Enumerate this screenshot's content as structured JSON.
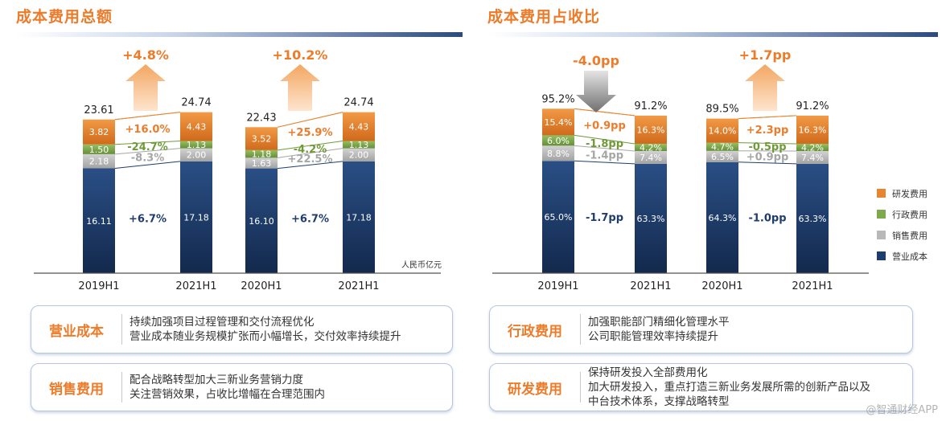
{
  "left_panel": {
    "title": "成本费用总额"
  },
  "right_panel": {
    "title": "成本费用占收比"
  },
  "colors": {
    "rd": "#e8862f",
    "admin": "#7faa4c",
    "sales": "#b8b8b8",
    "cost": "#1f3d6c",
    "orange_text": "#ec7b2a",
    "green_text": "#6f9a3a",
    "gray_text": "#a6a6a6",
    "navy_text": "#1f3d6c"
  },
  "chart_data": [
    {
      "type": "bar",
      "stacked": true,
      "title": "成本费用总额",
      "unit": "人民币亿元",
      "categories": [
        "2019H1",
        "2021H1",
        "2020H1",
        "2021H1"
      ],
      "series": [
        {
          "key": "cost",
          "name": "营业成本",
          "values": [
            16.11,
            17.18,
            16.1,
            17.18
          ],
          "labels": [
            "16.11",
            "17.18",
            "16.10",
            "17.18"
          ]
        },
        {
          "key": "sales",
          "name": "销售费用",
          "values": [
            2.18,
            2.0,
            1.63,
            2.0
          ],
          "labels": [
            "2.18",
            "2.00",
            "1.63",
            "2.00"
          ]
        },
        {
          "key": "admin",
          "name": "行政费用",
          "values": [
            1.5,
            1.13,
            1.18,
            1.13
          ],
          "labels": [
            "1.50",
            "1.13",
            "1.18",
            "1.13"
          ]
        },
        {
          "key": "rd",
          "name": "研发费用",
          "values": [
            3.82,
            4.43,
            3.52,
            4.43
          ],
          "labels": [
            "3.82",
            "4.43",
            "3.52",
            "4.43"
          ]
        }
      ],
      "totals": [
        "23.61",
        "24.74",
        "22.43",
        "24.74"
      ],
      "groups": [
        {
          "pair": [
            0,
            1
          ],
          "total_change": "+4.8%",
          "changes": {
            "rd": "+16.0%",
            "admin": "-24.7%",
            "sales": "-8.3%",
            "cost": "+6.7%"
          }
        },
        {
          "pair": [
            2,
            3
          ],
          "total_change": "+10.2%",
          "changes": {
            "rd": "+25.9%",
            "admin": "-4.2%",
            "sales": "+22.5%",
            "cost": "+6.7%"
          }
        }
      ]
    },
    {
      "type": "bar",
      "stacked": true,
      "title": "成本费用占收比",
      "categories": [
        "2019H1",
        "2021H1",
        "2020H1",
        "2021H1"
      ],
      "series": [
        {
          "key": "cost",
          "name": "营业成本",
          "values": [
            65.0,
            63.3,
            64.3,
            63.3
          ],
          "labels": [
            "65.0%",
            "63.3%",
            "64.3%",
            "63.3%"
          ]
        },
        {
          "key": "sales",
          "name": "销售费用",
          "values": [
            8.8,
            7.4,
            6.5,
            7.4
          ],
          "labels": [
            "8.8%",
            "7.4%",
            "6.5%",
            "7.4%"
          ]
        },
        {
          "key": "admin",
          "name": "行政费用",
          "values": [
            6.0,
            4.2,
            4.7,
            4.2
          ],
          "labels": [
            "6.0%",
            "4.2%",
            "4.7%",
            "4.2%"
          ]
        },
        {
          "key": "rd",
          "name": "研发费用",
          "values": [
            15.4,
            16.3,
            14.0,
            16.3
          ],
          "labels": [
            "15.4%",
            "16.3%",
            "14.0%",
            "16.3%"
          ]
        }
      ],
      "totals": [
        "95.2%",
        "91.2%",
        "89.5%",
        "91.2%"
      ],
      "groups": [
        {
          "pair": [
            0,
            1
          ],
          "total_change": "-4.0pp",
          "changes": {
            "rd": "+0.9pp",
            "admin": "-1.8pp",
            "sales": "-1.4pp",
            "cost": "-1.7pp"
          }
        },
        {
          "pair": [
            2,
            3
          ],
          "total_change": "+1.7pp",
          "changes": {
            "rd": "+2.3pp",
            "admin": "-0.5pp",
            "sales": "+0.9pp",
            "cost": "-1.0pp"
          }
        }
      ],
      "legend": [
        {
          "key": "rd",
          "label": "研发费用"
        },
        {
          "key": "admin",
          "label": "行政费用"
        },
        {
          "key": "sales",
          "label": "销售费用"
        },
        {
          "key": "cost",
          "label": "营业成本"
        }
      ]
    }
  ],
  "cards": [
    {
      "label": "营业成本",
      "lines": [
        "持续加强项目过程管理和交付流程优化",
        "营业成本随业务规模扩张而小幅增长，交付效率持续提升"
      ]
    },
    {
      "label": "销售费用",
      "lines": [
        "配合战略转型加大三新业务营销力度",
        "关注营销效果，占收比增幅在合理范围内"
      ]
    },
    {
      "label": "行政费用",
      "lines": [
        "加强职能部门精细化管理水平",
        "公司职能管理效率持续提升"
      ]
    },
    {
      "label": "研发费用",
      "lines": [
        "保持研发投入全部费用化",
        "加大研发投入，重点打造三新业务发展所需的创新产品以及",
        "中台技术体系，支撑战略转型"
      ]
    }
  ],
  "watermark": "@智通财经APP"
}
